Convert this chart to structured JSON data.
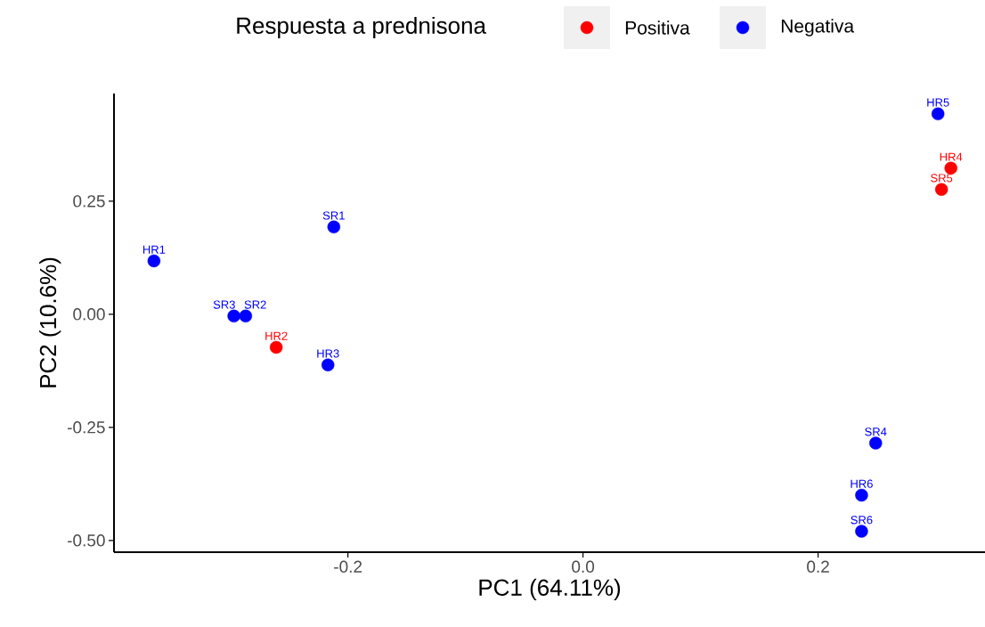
{
  "chart_data": {
    "type": "scatter",
    "xlabel": "PC1 (64.11%)",
    "ylabel": "PC2 (10.6%)",
    "legend_title": "Respuesta a prednisona",
    "legend": "top",
    "marker": "circle",
    "grid": false,
    "xlim": [
      -0.399,
      0.342
    ],
    "ylim": [
      -0.526,
      0.488
    ],
    "xticks": [
      {
        "value": -0.2,
        "label": "-0.2"
      },
      {
        "value": 0.0,
        "label": "0.0"
      },
      {
        "value": 0.2,
        "label": "0.2"
      }
    ],
    "yticks": [
      {
        "value": -0.5,
        "label": "-0.50"
      },
      {
        "value": -0.25,
        "label": "-0.25"
      },
      {
        "value": 0.0,
        "label": "0.00"
      },
      {
        "value": 0.25,
        "label": "0.25"
      }
    ],
    "series": [
      {
        "name": "Positiva",
        "color": "#ff0000",
        "x": [
          -0.261,
          0.313,
          0.305
        ],
        "values": [
          -0.073,
          0.323,
          0.276
        ]
      },
      {
        "name": "Negativa",
        "color": "#0000ff",
        "x": [
          -0.365,
          -0.297,
          -0.287,
          -0.217,
          -0.212,
          0.302,
          0.249,
          0.237,
          0.237
        ],
        "values": [
          0.118,
          -0.004,
          -0.004,
          -0.112,
          0.193,
          0.443,
          -0.285,
          -0.4,
          -0.48
        ]
      }
    ],
    "annotations": [
      {
        "text": "HR2",
        "x": -0.261,
        "y": -0.073
      },
      {
        "text": "HR4",
        "x": 0.313,
        "y": 0.323
      },
      {
        "text": "SR5",
        "x": 0.305,
        "y": 0.276
      },
      {
        "text": "HR1",
        "x": -0.365,
        "y": 0.118
      },
      {
        "text": "SR3",
        "x": -0.297,
        "y": -0.004
      },
      {
        "text": "SR2",
        "x": -0.287,
        "y": -0.004
      },
      {
        "text": "HR3",
        "x": -0.217,
        "y": -0.112
      },
      {
        "text": "SR1",
        "x": -0.212,
        "y": 0.193
      },
      {
        "text": "HR5",
        "x": 0.302,
        "y": 0.443
      },
      {
        "text": "SR4",
        "x": 0.249,
        "y": -0.285
      },
      {
        "text": "HR6",
        "x": 0.237,
        "y": -0.4
      },
      {
        "text": "SR6",
        "x": 0.237,
        "y": -0.48
      }
    ]
  }
}
